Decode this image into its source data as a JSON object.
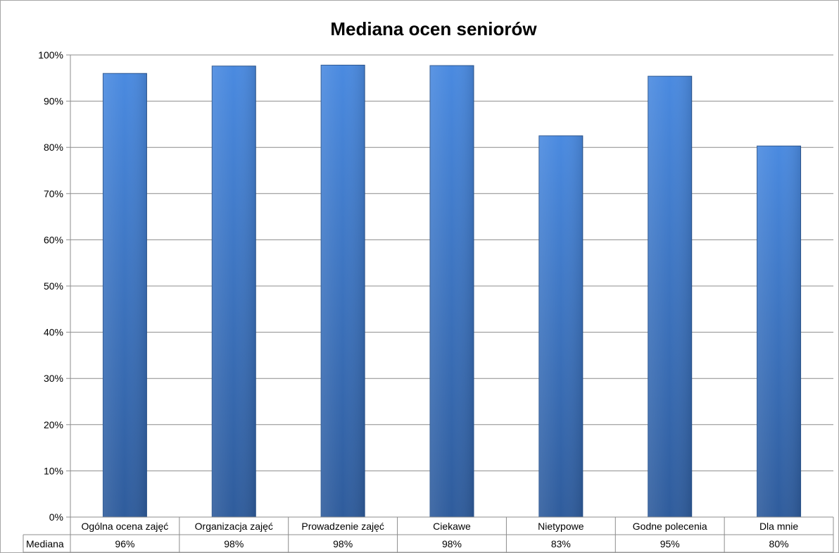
{
  "chart_data": {
    "type": "bar",
    "title": "Mediana ocen seniorów",
    "categories": [
      "Ogólna ocena zajęć",
      "Organizacja zajęć",
      "Prowadzenie zajęć",
      "Ciekawe",
      "Nietypowe",
      "Godne polecenia",
      "Dla mnie"
    ],
    "series": [
      {
        "name": "Mediana",
        "values": [
          96,
          97.6,
          97.8,
          97.7,
          82.5,
          95.4,
          80.3
        ],
        "labels": [
          "96%",
          "98%",
          "98%",
          "98%",
          "83%",
          "95%",
          "80%"
        ]
      }
    ],
    "ylim": [
      0,
      100
    ],
    "yticks": [
      0,
      10,
      20,
      30,
      40,
      50,
      60,
      70,
      80,
      90,
      100
    ],
    "ytick_labels": [
      "0%",
      "10%",
      "20%",
      "30%",
      "40%",
      "50%",
      "60%",
      "70%",
      "80%",
      "90%",
      "100%"
    ],
    "grid": true,
    "legend": "data-table",
    "bar_color": "#3f7fd0"
  }
}
